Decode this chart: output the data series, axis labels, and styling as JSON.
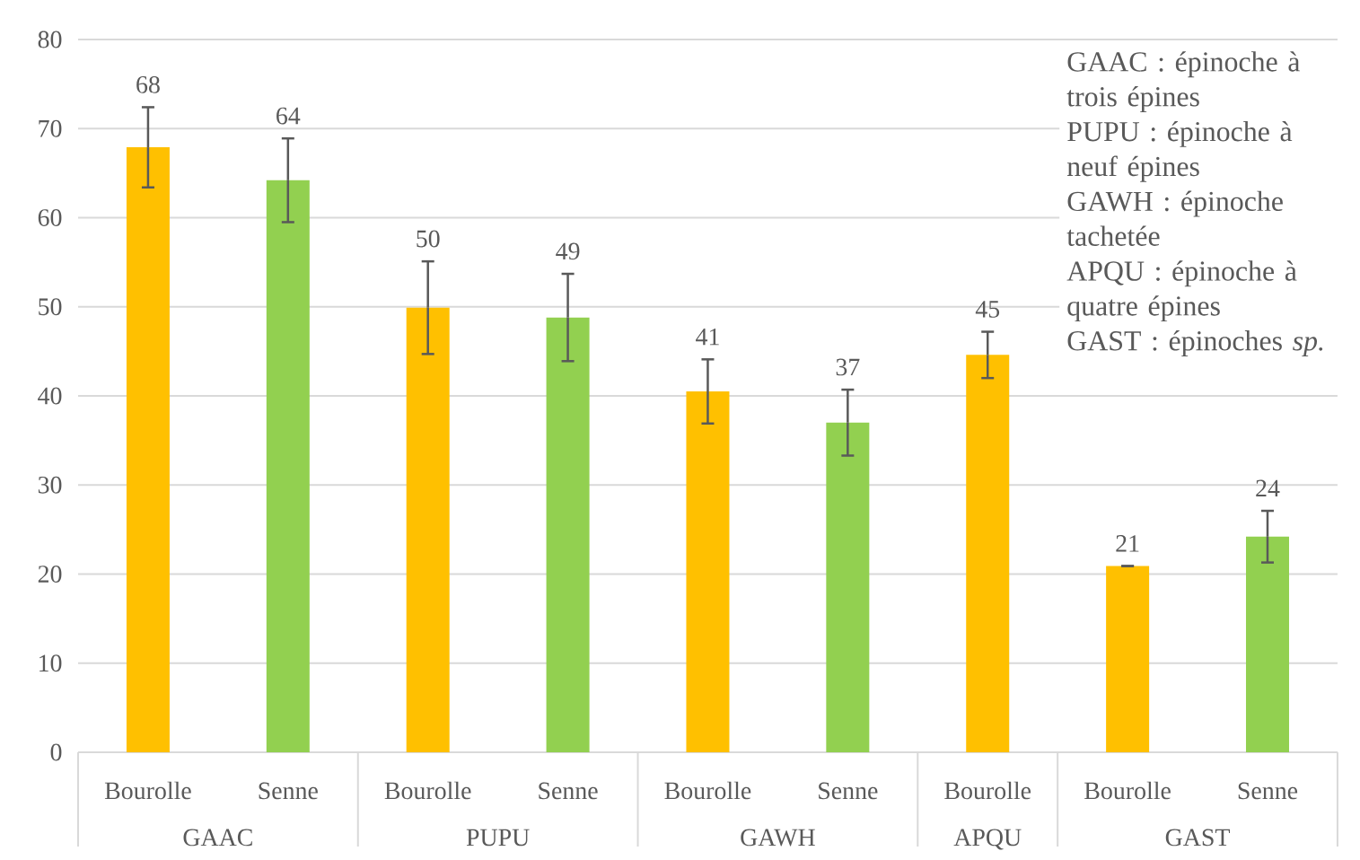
{
  "chart_data": {
    "type": "bar",
    "categories": [
      "Bourolle",
      "Senne",
      "Bourolle",
      "Senne",
      "Bourolle",
      "Senne",
      "Bourolle",
      "Bourolle",
      "Senne"
    ],
    "values": [
      67.9,
      64.2,
      49.9,
      48.8,
      40.5,
      37.0,
      44.6,
      20.9,
      24.2
    ],
    "colors": [
      "#ffc000",
      "#92d050",
      "#ffc000",
      "#92d050",
      "#ffc000",
      "#92d050",
      "#ffc000",
      "#ffc000",
      "#92d050"
    ],
    "errors": [
      4.5,
      4.7,
      5.2,
      4.9,
      3.6,
      3.7,
      2.6,
      0,
      2.9
    ],
    "value_labels": [
      "68",
      "64",
      "50",
      "49",
      "41",
      "37",
      "45",
      "21",
      "24"
    ],
    "ylim": [
      0,
      80
    ],
    "yticks": [
      0,
      10,
      20,
      30,
      40,
      50,
      60,
      70,
      80
    ],
    "grid": "y",
    "annotations": [
      "GAAC",
      "PUPU",
      "GAWH",
      "APQU",
      "GAST",
      "GAAC : épinoche à trois épines",
      "PUPU : épinoche à neuf épines",
      "GAWH : épinoche tachetée",
      "APQU : épinoche à quatre épines",
      "GAST : épinoches *sp.*"
    ]
  }
}
